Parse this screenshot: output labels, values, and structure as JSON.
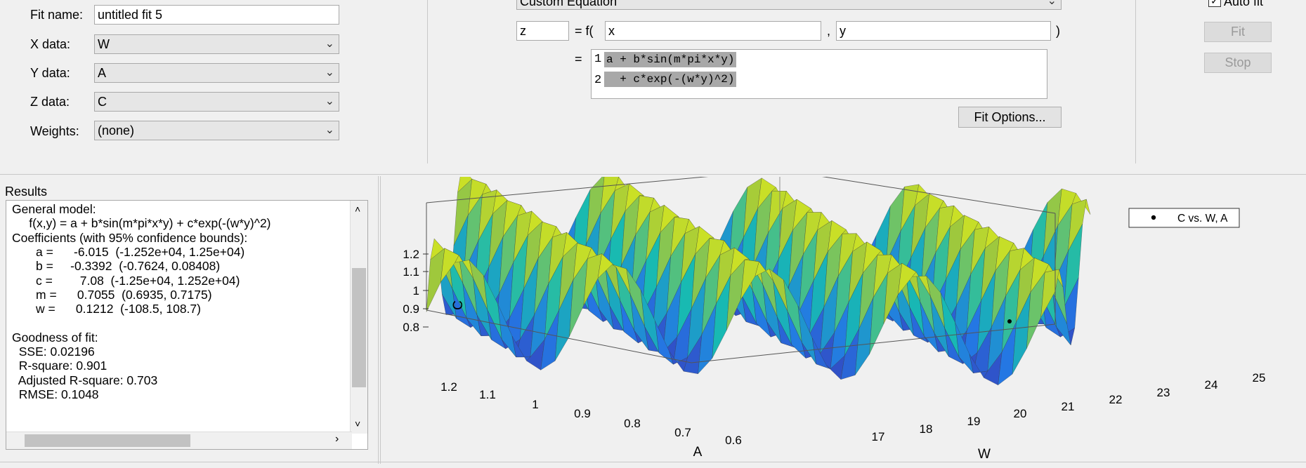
{
  "fit_panel": {
    "fit_name_label": "Fit name:",
    "fit_name_value": "untitled fit 5",
    "x_data_label": "X data:",
    "x_data_value": "W",
    "y_data_label": "Y data:",
    "y_data_value": "A",
    "z_data_label": "Z data:",
    "z_data_value": "C",
    "weights_label": "Weights:",
    "weights_value": "(none)"
  },
  "equation_panel": {
    "type_value": "Custom Equation",
    "output_var": "z",
    "f_open": "= f(",
    "var1": "x",
    "comma": ",",
    "var2": "y",
    "close": ")",
    "equals": "=",
    "lines": [
      {
        "num": "1",
        "text": "a + b*sin(m*pi*x*y)"
      },
      {
        "num": "2",
        "text": "  + c*exp(-(w*y)^2)"
      }
    ],
    "fit_options_label": "Fit Options..."
  },
  "controls": {
    "auto_fit_label": "Auto fit",
    "auto_fit_checked": true,
    "fit_label": "Fit",
    "stop_label": "Stop"
  },
  "results": {
    "title": "Results",
    "lines": [
      "General model:",
      "     f(x,y) = a + b*sin(m*pi*x*y) + c*exp(-(w*y)^2)",
      "Coefficients (with 95% confidence bounds):",
      "       a =      -6.015  (-1.252e+04, 1.25e+04)",
      "       b =     -0.3392  (-0.7624, 0.08408)",
      "       c =        7.08  (-1.25e+04, 1.252e+04)",
      "       m =      0.7055  (0.6935, 0.7175)",
      "       w =      0.1212  (-108.5, 108.7)",
      "",
      "Goodness of fit:",
      "  SSE: 0.02196",
      "  R-square: 0.901",
      "  Adjusted R-square: 0.703",
      "  RMSE: 0.1048"
    ]
  },
  "plot": {
    "legend_label": "C vs. W, A",
    "c_axis_label": "C",
    "a_axis_label": "A",
    "w_axis_label": "W",
    "c_ticks": [
      "1.2",
      "1.1",
      "1",
      "0.9",
      "0.8"
    ],
    "a_ticks": [
      "1.2",
      "1.1",
      "1",
      "0.9",
      "0.8",
      "0.7",
      "0.6"
    ],
    "w_ticks": [
      "17",
      "18",
      "19",
      "20",
      "21",
      "22",
      "23",
      "24",
      "25"
    ]
  }
}
